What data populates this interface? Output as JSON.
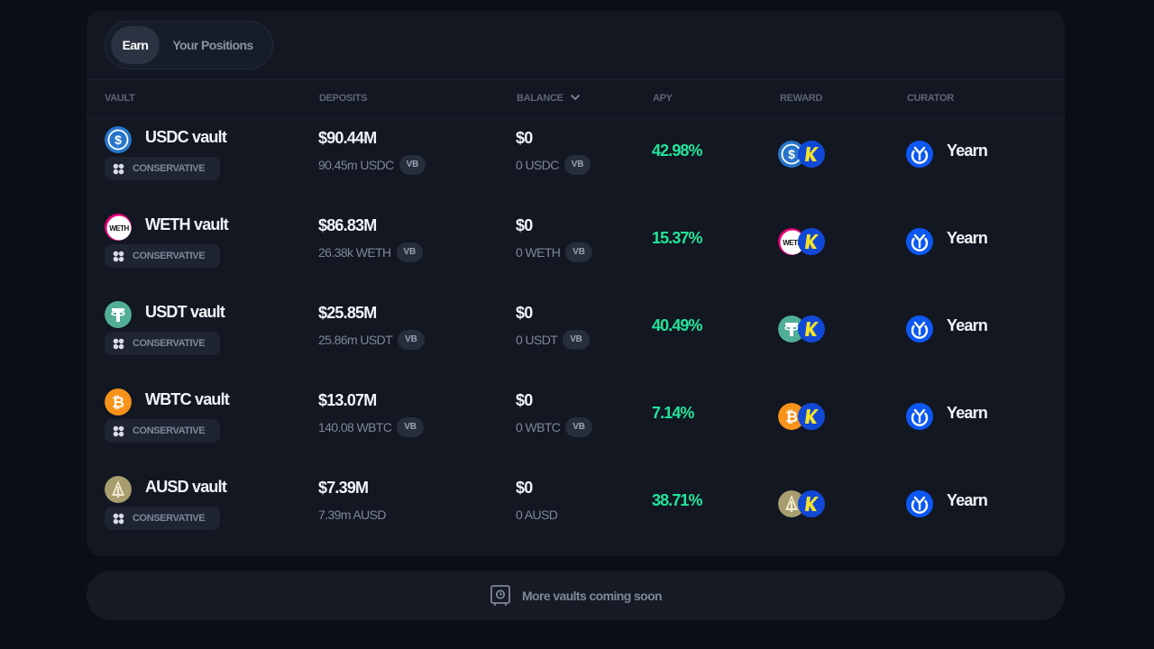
{
  "tabs": [
    {
      "label": "Earn",
      "active": true
    },
    {
      "label": "Your Positions",
      "active": false
    }
  ],
  "columns": {
    "vault": "VAULT",
    "deposits": "DEPOSITS",
    "balance": "BALANCE",
    "apy": "APY",
    "reward": "REWARD",
    "curator": "CURATOR"
  },
  "vb_label": "VB",
  "vaults": [
    {
      "name": "USDC vault",
      "risk": "CONSERVATIVE",
      "deposits": "$90.44M",
      "deposits_sub": "90.45m USDC",
      "deposits_vb": true,
      "balance": "$0",
      "balance_sub": "0 USDC",
      "balance_vb": true,
      "apy": "42.98%",
      "curator": "Yearn",
      "icon": "usdc-icon"
    },
    {
      "name": "WETH vault",
      "risk": "CONSERVATIVE",
      "deposits": "$86.83M",
      "deposits_sub": "26.38k WETH",
      "deposits_vb": true,
      "balance": "$0",
      "balance_sub": "0 WETH",
      "balance_vb": true,
      "apy": "15.37%",
      "curator": "Yearn",
      "icon": "weth-icon"
    },
    {
      "name": "USDT vault",
      "risk": "CONSERVATIVE",
      "deposits": "$25.85M",
      "deposits_sub": "25.86m USDT",
      "deposits_vb": true,
      "balance": "$0",
      "balance_sub": "0 USDT",
      "balance_vb": true,
      "apy": "40.49%",
      "curator": "Yearn",
      "icon": "usdt-icon"
    },
    {
      "name": "WBTC vault",
      "risk": "CONSERVATIVE",
      "deposits": "$13.07M",
      "deposits_sub": "140.08 WBTC",
      "deposits_vb": true,
      "balance": "$0",
      "balance_sub": "0 WBTC",
      "balance_vb": true,
      "apy": "7.14%",
      "curator": "Yearn",
      "icon": "wbtc-icon"
    },
    {
      "name": "AUSD vault",
      "risk": "CONSERVATIVE",
      "deposits": "$7.39M",
      "deposits_sub": "7.39m AUSD",
      "deposits_vb": false,
      "balance": "$0",
      "balance_sub": "0 AUSD",
      "balance_vb": false,
      "apy": "38.71%",
      "curator": "Yearn",
      "icon": "ausd-icon"
    }
  ],
  "weth_icon_text": "WETH",
  "footer": {
    "text": "More vaults coming soon",
    "icon": "vault-safe-icon"
  },
  "colors": {
    "apy": "#22e59a",
    "yearn": "#0d57f2",
    "panel": "#121722",
    "background": "#0a0e17"
  }
}
